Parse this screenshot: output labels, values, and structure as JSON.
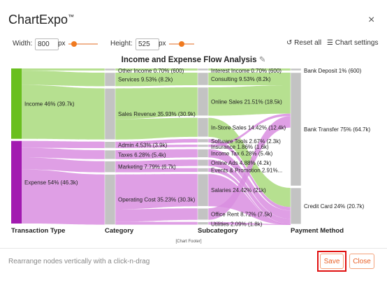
{
  "dialog": {
    "app_name": "ChartExpo",
    "trademark": "™",
    "close_glyph": "×"
  },
  "controls": {
    "width_label": "Width:",
    "width_value": "800",
    "width_unit": "px",
    "height_label": "Height:",
    "height_value": "525",
    "height_unit": "px",
    "reset_label": "Reset all",
    "settings_label": "Chart settings"
  },
  "chart_data": {
    "type": "sankey",
    "title": "Income and Expense Flow Analysis",
    "footer": "[Chart Footer]",
    "columns": [
      "Transaction Type",
      "Category",
      "Subcategory",
      "Payment Method"
    ],
    "nodes": {
      "transaction_type": [
        {
          "name": "Income",
          "label": "Income 46% (39.7k)",
          "percent": 46,
          "value": 39.7
        },
        {
          "name": "Expense",
          "label": "Expense 54% (46.3k)",
          "percent": 54,
          "value": 46.3
        }
      ],
      "category": [
        {
          "label": "Other Income 0.70% (600)",
          "percent": 0.7
        },
        {
          "label": "Services 9.53% (8.2k)",
          "percent": 9.53
        },
        {
          "label": "Sales Revenue 35.93% (30.9k)",
          "percent": 35.93
        },
        {
          "label": "Admin 4.53% (3.9k)",
          "percent": 4.53
        },
        {
          "label": "Taxes 6.28% (5.4k)",
          "percent": 6.28
        },
        {
          "label": "Marketing 7.79% (6.7k)",
          "percent": 7.79
        },
        {
          "label": "Operating Cost 35.23% (30.3k)",
          "percent": 35.23
        }
      ],
      "subcategory": [
        {
          "label": "Interest Income 0.70% (600)",
          "percent": 0.7
        },
        {
          "label": "Consulting 9.53% (8.2k)",
          "percent": 9.53
        },
        {
          "label": "Online Sales 21.51% (18.5k)",
          "percent": 21.51
        },
        {
          "label": "In-Store Sales 14.42% (12.4k)",
          "percent": 14.42
        },
        {
          "label": "Software Tools 2.67% (2.3k)",
          "percent": 2.67
        },
        {
          "label": "Insurance 1.86% (1.6k)",
          "percent": 1.86
        },
        {
          "label": "Income Tax 6.28% (5.4k)",
          "percent": 6.28
        },
        {
          "label": "Online Ads 4.88% (4.2k)",
          "percent": 4.88
        },
        {
          "label": "Events & Promotion 2.91%...",
          "percent": 2.91
        },
        {
          "label": "Salaries 24.42% (21k)",
          "percent": 24.42
        },
        {
          "label": "Office Rent 8.72% (7.5k)",
          "percent": 8.72
        },
        {
          "label": "Utilities 2.09% (1.8k)",
          "percent": 2.09
        }
      ],
      "payment_method": [
        {
          "label": "Bank Deposit 1% (600)",
          "percent": 1
        },
        {
          "label": "Bank Transfer 75% (64.7k)",
          "percent": 75
        },
        {
          "label": "Credit Card 24% (20.7k)",
          "percent": 24
        }
      ]
    },
    "colors": {
      "income": "#6abf1f",
      "expense": "#a21ab0",
      "income_flow": "#a9db7c",
      "expense_flow": "#d98ee0",
      "mid_node": "#c3c3c3"
    }
  },
  "footer": {
    "hint": "Rearrange nodes vertically with a click-n-drag",
    "save_label": "Save",
    "close_label": "Close"
  }
}
